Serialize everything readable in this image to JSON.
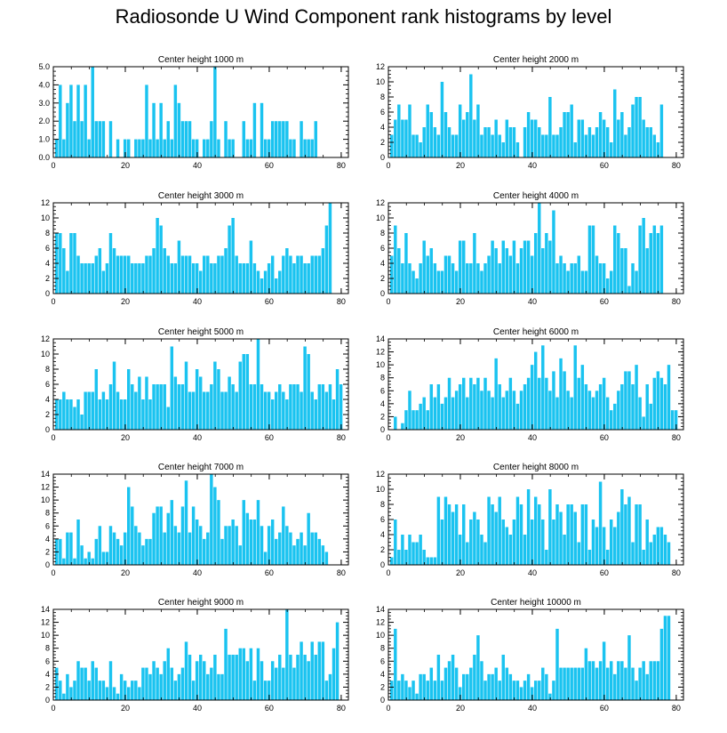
{
  "title": "Radiosonde U Wind Component rank histograms by level",
  "bar_color": "#1ac3f0",
  "chart_data": [
    {
      "type": "bar",
      "title": "Center height 1000 m",
      "xlim": [
        0,
        82
      ],
      "ylim": [
        0,
        5
      ],
      "xticks": [
        0,
        20,
        40,
        60,
        80
      ],
      "yticks": [
        "0.0",
        "1.0",
        "2.0",
        "3.0",
        "4.0",
        "5.0"
      ],
      "values": [
        1,
        4,
        1,
        3,
        4,
        2,
        4,
        2,
        4,
        1,
        5,
        2,
        2,
        2,
        0,
        2,
        0,
        1,
        0,
        1,
        1,
        0,
        1,
        1,
        1,
        4,
        1,
        3,
        1,
        3,
        1,
        2,
        1,
        4,
        3,
        2,
        2,
        2,
        1,
        1,
        0,
        1,
        1,
        2,
        5,
        1,
        0,
        2,
        1,
        1,
        0,
        0,
        2,
        1,
        1,
        3,
        0,
        3,
        1,
        1,
        2,
        2,
        2,
        2,
        2,
        1,
        1,
        0,
        2,
        1,
        1,
        1,
        2
      ]
    },
    {
      "type": "bar",
      "title": "Center height 2000 m",
      "xlim": [
        0,
        82
      ],
      "ylim": [
        0,
        12
      ],
      "xticks": [
        0,
        20,
        40,
        60,
        80
      ],
      "yticks": [
        "0",
        "2",
        "4",
        "6",
        "8",
        "10",
        "12"
      ],
      "values": [
        3,
        5,
        7,
        5,
        5,
        7,
        3,
        3,
        2,
        4,
        7,
        6,
        4,
        3,
        10,
        6,
        4,
        3,
        3,
        7,
        5,
        6,
        11,
        5,
        7,
        3,
        4,
        4,
        3,
        5,
        3,
        2,
        5,
        4,
        4,
        2,
        0,
        4,
        6,
        5,
        5,
        4,
        3,
        3,
        8,
        3,
        3,
        4,
        6,
        6,
        7,
        2,
        5,
        5,
        3,
        4,
        3,
        4,
        6,
        5,
        4,
        2,
        9,
        5,
        6,
        3,
        4,
        7,
        8,
        8,
        5,
        4,
        4,
        3,
        2,
        7
      ]
    },
    {
      "type": "bar",
      "title": "Center height 3000 m",
      "xlim": [
        0,
        82
      ],
      "ylim": [
        0,
        12
      ],
      "xticks": [
        0,
        20,
        40,
        60,
        80
      ],
      "yticks": [
        "0",
        "2",
        "4",
        "6",
        "8",
        "10",
        "12"
      ],
      "values": [
        8,
        8,
        6,
        3,
        8,
        8,
        5,
        4,
        4,
        4,
        4,
        5,
        6,
        3,
        4,
        8,
        6,
        5,
        5,
        5,
        5,
        4,
        4,
        4,
        4,
        5,
        5,
        6,
        10,
        9,
        6,
        5,
        4,
        4,
        7,
        5,
        5,
        5,
        4,
        4,
        3,
        5,
        5,
        4,
        4,
        5,
        5,
        6,
        9,
        10,
        5,
        4,
        4,
        4,
        7,
        4,
        3,
        2,
        3,
        4,
        5,
        2,
        3,
        5,
        6,
        5,
        4,
        5,
        5,
        4,
        4,
        5,
        5,
        5,
        6,
        9,
        12
      ]
    },
    {
      "type": "bar",
      "title": "Center height 4000 m",
      "xlim": [
        0,
        82
      ],
      "ylim": [
        0,
        12
      ],
      "xticks": [
        0,
        20,
        40,
        60,
        80
      ],
      "yticks": [
        "0",
        "2",
        "4",
        "6",
        "8",
        "10",
        "12"
      ],
      "values": [
        5,
        9,
        6,
        4,
        8,
        4,
        3,
        2,
        4,
        7,
        5,
        6,
        4,
        3,
        3,
        5,
        5,
        4,
        3,
        7,
        7,
        4,
        4,
        8,
        4,
        3,
        4,
        5,
        7,
        6,
        4,
        7,
        6,
        5,
        7,
        4,
        6,
        7,
        7,
        5,
        8,
        12,
        6,
        8,
        7,
        11,
        4,
        5,
        4,
        3,
        4,
        4,
        5,
        3,
        3,
        9,
        9,
        5,
        4,
        4,
        2,
        3,
        9,
        8,
        6,
        6,
        1,
        4,
        3,
        9,
        10,
        6,
        8,
        9,
        8,
        9
      ]
    },
    {
      "type": "bar",
      "title": "Center height 5000 m",
      "xlim": [
        0,
        82
      ],
      "ylim": [
        0,
        12
      ],
      "xticks": [
        0,
        20,
        40,
        60,
        80
      ],
      "yticks": [
        "0",
        "2",
        "4",
        "6",
        "8",
        "10",
        "12"
      ],
      "values": [
        4,
        4,
        5,
        4,
        4,
        3,
        4,
        2,
        5,
        5,
        5,
        8,
        4,
        5,
        4,
        6,
        9,
        5,
        4,
        4,
        8,
        6,
        5,
        7,
        4,
        7,
        4,
        6,
        6,
        6,
        6,
        3,
        11,
        7,
        6,
        6,
        9,
        5,
        5,
        8,
        7,
        5,
        5,
        6,
        9,
        8,
        5,
        5,
        7,
        6,
        5,
        9,
        10,
        10,
        6,
        6,
        12,
        6,
        5,
        5,
        4,
        5,
        6,
        5,
        4,
        6,
        6,
        6,
        5,
        11,
        10,
        5,
        4,
        6,
        6,
        5,
        6,
        4,
        8,
        6
      ]
    },
    {
      "type": "bar",
      "title": "Center height 6000 m",
      "xlim": [
        0,
        82
      ],
      "ylim": [
        0,
        14
      ],
      "xticks": [
        0,
        20,
        40,
        60,
        80
      ],
      "yticks": [
        "0",
        "2",
        "4",
        "6",
        "8",
        "10",
        "12",
        "14"
      ],
      "values": [
        0,
        2,
        0,
        1,
        3,
        6,
        3,
        3,
        4,
        5,
        3,
        7,
        5,
        7,
        4,
        5,
        8,
        5,
        6,
        7,
        8,
        5,
        8,
        7,
        8,
        6,
        8,
        6,
        5,
        11,
        7,
        5,
        6,
        8,
        6,
        4,
        6,
        7,
        8,
        10,
        12,
        8,
        13,
        8,
        6,
        9,
        5,
        11,
        9,
        6,
        5,
        13,
        8,
        10,
        7,
        6,
        5,
        6,
        7,
        8,
        5,
        3,
        4,
        6,
        7,
        9,
        9,
        7,
        10,
        5,
        2,
        7,
        4,
        8,
        9,
        8,
        7,
        10,
        3,
        3
      ]
    },
    {
      "type": "bar",
      "title": "Center height 7000 m",
      "xlim": [
        0,
        82
      ],
      "ylim": [
        0,
        14
      ],
      "xticks": [
        0,
        20,
        40,
        60,
        80
      ],
      "yticks": [
        "0",
        "2",
        "4",
        "6",
        "8",
        "10",
        "12",
        "14"
      ],
      "values": [
        4,
        4,
        1,
        5,
        5,
        1,
        7,
        3,
        1,
        2,
        1,
        4,
        6,
        2,
        2,
        6,
        5,
        4,
        3,
        5,
        12,
        9,
        6,
        5,
        3,
        4,
        4,
        8,
        9,
        9,
        5,
        8,
        10,
        6,
        5,
        9,
        13,
        5,
        9,
        7,
        6,
        4,
        5,
        14,
        12,
        10,
        4,
        6,
        6,
        7,
        6,
        3,
        10,
        8,
        7,
        7,
        10,
        6,
        2,
        6,
        7,
        4,
        5,
        9,
        6,
        5,
        3,
        4,
        5,
        3,
        8,
        5,
        5,
        4,
        3,
        2
      ]
    },
    {
      "type": "bar",
      "title": "Center height 8000 m",
      "xlim": [
        0,
        82
      ],
      "ylim": [
        0,
        12
      ],
      "xticks": [
        0,
        20,
        40,
        60,
        80
      ],
      "yticks": [
        "0",
        "2",
        "4",
        "6",
        "8",
        "10",
        "12"
      ],
      "values": [
        1,
        6,
        2,
        4,
        2,
        4,
        3,
        3,
        4,
        2,
        1,
        1,
        1,
        9,
        6,
        9,
        8,
        7,
        8,
        4,
        8,
        3,
        6,
        7,
        6,
        4,
        3,
        9,
        8,
        7,
        9,
        6,
        5,
        4,
        6,
        9,
        8,
        4,
        10,
        6,
        9,
        8,
        6,
        2,
        10,
        6,
        8,
        7,
        4,
        8,
        8,
        7,
        3,
        8,
        8,
        2,
        6,
        5,
        11,
        5,
        2,
        6,
        5,
        7,
        10,
        8,
        9,
        3,
        8,
        8,
        2,
        6,
        3,
        4,
        5,
        5,
        4,
        3
      ]
    },
    {
      "type": "bar",
      "title": "Center height 9000 m",
      "xlim": [
        0,
        82
      ],
      "ylim": [
        0,
        14
      ],
      "xticks": [
        0,
        20,
        40,
        60,
        80
      ],
      "yticks": [
        "0",
        "2",
        "4",
        "6",
        "8",
        "10",
        "12",
        "14"
      ],
      "values": [
        5,
        3,
        1,
        4,
        2,
        3,
        6,
        5,
        5,
        3,
        6,
        5,
        3,
        3,
        2,
        6,
        2,
        1,
        4,
        3,
        2,
        3,
        3,
        2,
        5,
        5,
        4,
        6,
        5,
        4,
        6,
        8,
        5,
        3,
        4,
        5,
        9,
        7,
        3,
        6,
        7,
        6,
        4,
        5,
        7,
        4,
        4,
        11,
        7,
        7,
        7,
        8,
        8,
        6,
        8,
        3,
        8,
        6,
        3,
        3,
        6,
        5,
        7,
        5,
        14,
        7,
        5,
        7,
        9,
        7,
        6,
        9,
        7,
        9,
        9,
        3,
        4,
        8,
        12
      ]
    },
    {
      "type": "bar",
      "title": "Center height 10000 m",
      "xlim": [
        0,
        82
      ],
      "ylim": [
        0,
        14
      ],
      "xticks": [
        0,
        20,
        40,
        60,
        80
      ],
      "yticks": [
        "0",
        "2",
        "4",
        "6",
        "8",
        "10",
        "12",
        "14"
      ],
      "values": [
        3,
        11,
        3,
        4,
        3,
        2,
        3,
        1,
        4,
        4,
        3,
        5,
        3,
        7,
        3,
        5,
        6,
        7,
        5,
        2,
        4,
        4,
        5,
        7,
        10,
        6,
        3,
        4,
        4,
        5,
        3,
        7,
        5,
        4,
        3,
        3,
        2,
        3,
        4,
        2,
        3,
        3,
        5,
        4,
        1,
        3,
        11,
        5,
        5,
        5,
        5,
        5,
        5,
        5,
        8,
        6,
        6,
        5,
        6,
        9,
        5,
        6,
        4,
        6,
        6,
        5,
        10,
        5,
        3,
        5,
        6,
        4,
        6,
        6,
        6,
        11,
        13,
        13
      ]
    }
  ]
}
